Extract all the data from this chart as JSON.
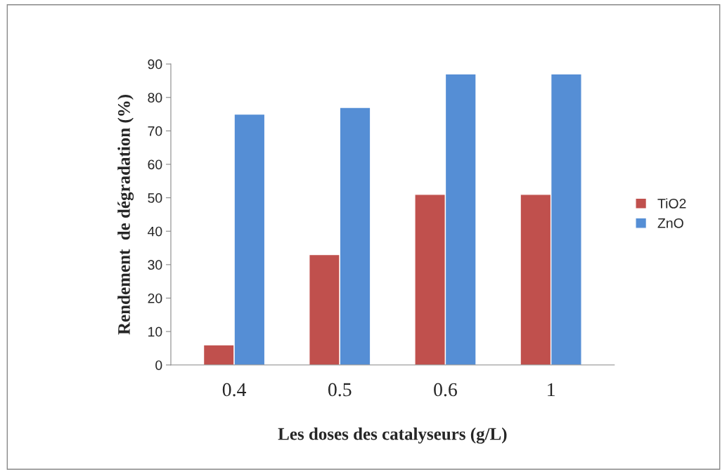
{
  "chart_data": {
    "type": "bar",
    "xlabel": "Les doses des catalyseurs (g/L)",
    "ylabel": "Rendement  de dégradation (%)",
    "categories": [
      "0.4",
      "0.5",
      "0.6",
      "1"
    ],
    "series": [
      {
        "name": "TiO2",
        "color": "#c0504d",
        "values": [
          6,
          33,
          51,
          51
        ]
      },
      {
        "name": "ZnO",
        "color": "#558ed5",
        "values": [
          75,
          77,
          87,
          87
        ]
      }
    ],
    "ylim": [
      0,
      90
    ],
    "yticks": [
      0,
      10,
      20,
      30,
      40,
      50,
      60,
      70,
      80,
      90
    ],
    "grid": false,
    "legend": "right"
  }
}
